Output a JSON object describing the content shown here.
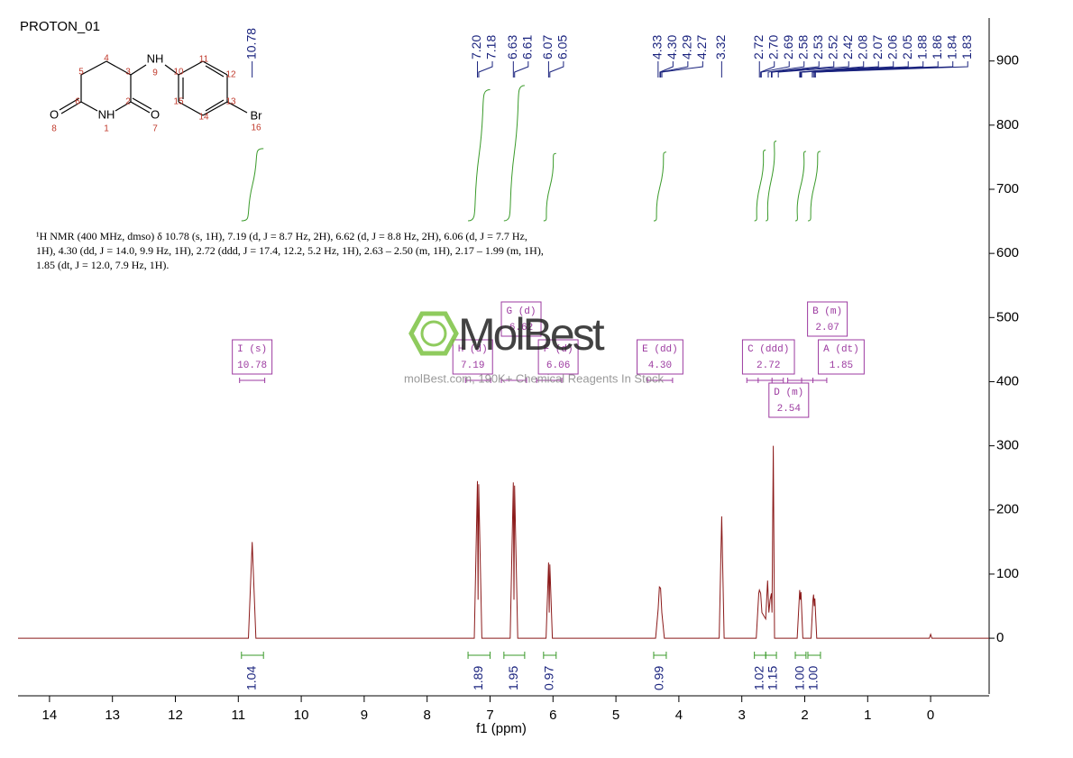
{
  "chart_data": {
    "type": "line",
    "title": "PROTON_01",
    "xlabel": "f1 (ppm)",
    "xlim": [
      14.5,
      -0.93
    ],
    "xticks": [
      14,
      13,
      12,
      11,
      10,
      9,
      8,
      7,
      6,
      5,
      4,
      3,
      2,
      1,
      0
    ],
    "ylim": [
      -87,
      967
    ],
    "yticks": [
      0,
      100,
      200,
      300,
      400,
      500,
      600,
      700,
      800,
      900
    ],
    "color": "#8b1a1a",
    "x": [
      14.5,
      10.84,
      10.78,
      10.72,
      7.25,
      7.2,
      7.19,
      7.18,
      7.13,
      6.68,
      6.63,
      6.62,
      6.61,
      6.56,
      6.11,
      6.07,
      6.06,
      6.05,
      6.01,
      4.37,
      4.33,
      4.31,
      4.29,
      4.27,
      4.23,
      3.36,
      3.32,
      3.28,
      2.77,
      2.73,
      2.72,
      2.7,
      2.68,
      2.62,
      2.59,
      2.57,
      2.55,
      2.53,
      2.52,
      2.5,
      2.48,
      2.12,
      2.08,
      2.07,
      2.06,
      2.03,
      1.9,
      1.87,
      1.86,
      1.85,
      1.84,
      1.81,
      0.02,
      0,
      -0.02,
      -0.93
    ],
    "values": [
      0,
      0,
      150,
      0,
      0,
      245,
      60,
      240,
      0,
      0,
      243,
      60,
      238,
      0,
      0,
      118,
      40,
      115,
      0,
      0,
      45,
      80,
      78,
      40,
      0,
      0,
      190,
      0,
      0,
      70,
      75,
      70,
      40,
      30,
      90,
      40,
      60,
      70,
      40,
      300,
      0,
      0,
      75,
      60,
      72,
      0,
      0,
      60,
      68,
      50,
      62,
      0,
      0,
      6,
      0,
      0
    ],
    "peak_labels": [
      10.78,
      {
        "value": 7.2,
        "label": "7.20"
      },
      7.18,
      6.63,
      6.61,
      6.07,
      6.05,
      4.33,
      {
        "value": 4.3,
        "label": "4.30"
      },
      4.29,
      4.27,
      3.32,
      2.72,
      {
        "value": 2.7,
        "label": "2.70"
      },
      2.69,
      2.58,
      2.53,
      2.52,
      2.42,
      2.08,
      2.07,
      2.06,
      2.05,
      1.88,
      1.86,
      1.84,
      1.83
    ],
    "integrals": {
      "from": [
        10.95,
        7.35,
        6.78,
        6.15,
        4.4,
        2.8,
        2.62,
        2.15,
        1.95
      ],
      "to": [
        10.6,
        7.0,
        6.45,
        5.95,
        4.2,
        2.62,
        2.45,
        1.98,
        1.75
      ],
      "values": [
        1.04,
        1.89,
        1.95,
        0.97,
        0.99,
        1.02,
        1.15,
        1,
        1
      ],
      "value_labels": [
        "1.04",
        "1.89",
        "1.95",
        "0.97",
        "0.99",
        "1.02",
        "1.15",
        "1.00",
        "1.00"
      ]
    },
    "multiplets": {
      "labels": [
        "I (s)",
        "H (d)",
        "G (d)",
        "F (d)",
        "E (dd)",
        "C (ddd)",
        "D (m)",
        "B (m)",
        "A (dt)"
      ],
      "values": [
        10.78,
        7.19,
        6.62,
        6.06,
        4.3,
        2.72,
        2.54,
        2.07,
        1.85
      ],
      "value_labels": [
        "10.78",
        "7.19",
        "6.62",
        "6.06",
        "4.30",
        "2.72",
        "2.54",
        "2.07",
        "1.85"
      ]
    },
    "description": "¹H NMR (400 MHz, dmso) δ 10.78 (s, 1H), 7.19 (d, J = 8.7 Hz, 2H), 6.62 (d, J = 8.8 Hz, 2H), 6.06 (d, J = 7.7 Hz, 1H), 4.30 (dd, J = 14.0, 9.9 Hz, 1H), 2.72 (ddd, J = 17.4, 12.2, 5.2 Hz, 1H), 2.63 – 2.50 (m, 1H), 2.17 – 1.99 (m, 1H), 1.85 (dt, J = 12.0, 7.9 Hz, 1H).",
    "watermark": {
      "brand": "MolBest",
      "tagline": "molBest.com, 190K+ Chemical Reagents In Stock"
    },
    "structure": {
      "atom_labels": [
        "NH",
        "NH",
        "O",
        "O",
        "Br"
      ],
      "atom_numbers": [
        1,
        2,
        3,
        4,
        5,
        6,
        7,
        8,
        9,
        10,
        11,
        12,
        13,
        14,
        15,
        16
      ]
    }
  }
}
